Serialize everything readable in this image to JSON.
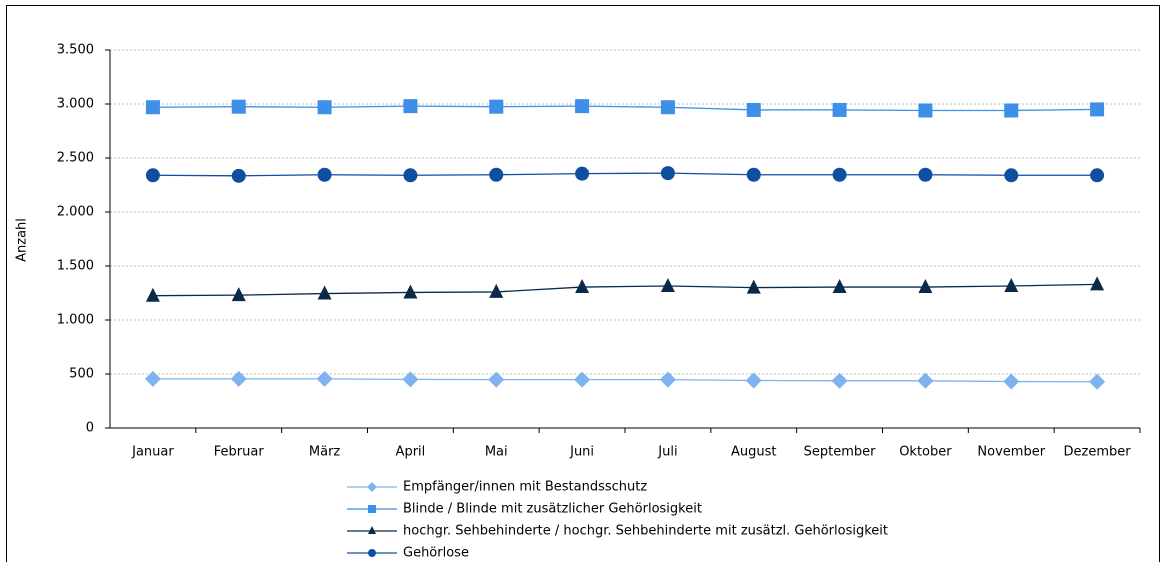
{
  "chart_data": {
    "type": "line",
    "y_label": "Anzahl",
    "categories": [
      "Januar",
      "Februar",
      "März",
      "April",
      "Mai",
      "Juni",
      "Juli",
      "August",
      "September",
      "Oktober",
      "November",
      "Dezember"
    ],
    "ylim": [
      0,
      3500
    ],
    "yticks": [
      0,
      500,
      {
        "value": 1000,
        "label": "1.000"
      },
      {
        "value": 1500,
        "label": "1.500"
      },
      {
        "value": 2000,
        "label": "2.000"
      },
      {
        "value": 2500,
        "label": "2.500"
      },
      {
        "value": 3000,
        "label": "3.000"
      },
      {
        "value": 3500,
        "label": "3.500"
      }
    ],
    "grid": true,
    "series": [
      {
        "name": "Empfänger/innen mit Bestandsschutz",
        "color": "#7fb3f0",
        "marker": "diamond",
        "values": [
          455,
          455,
          455,
          450,
          448,
          448,
          448,
          440,
          437,
          437,
          430,
          428
        ]
      },
      {
        "name": "Blinde / Blinde mit zusätzlicher Gehörlosigkeit",
        "color": "#3d8fe8",
        "marker": "square",
        "values": [
          2970,
          2975,
          2970,
          2980,
          2975,
          2980,
          2970,
          2945,
          2945,
          2940,
          2940,
          2950
        ]
      },
      {
        "name": "hochgr. Sehbehinderte / hochgr. Sehbehinderte mit zusätzl. Gehörlosigkeit",
        "color": "#0b2a4a",
        "marker": "triangle",
        "values": [
          1225,
          1230,
          1245,
          1255,
          1260,
          1305,
          1315,
          1300,
          1305,
          1305,
          1315,
          1330
        ]
      },
      {
        "name": "Gehörlose",
        "color": "#0f4fa0",
        "marker": "circle",
        "values": [
          2340,
          2335,
          2345,
          2340,
          2345,
          2355,
          2360,
          2345,
          2345,
          2345,
          2340,
          2340
        ]
      }
    ]
  }
}
